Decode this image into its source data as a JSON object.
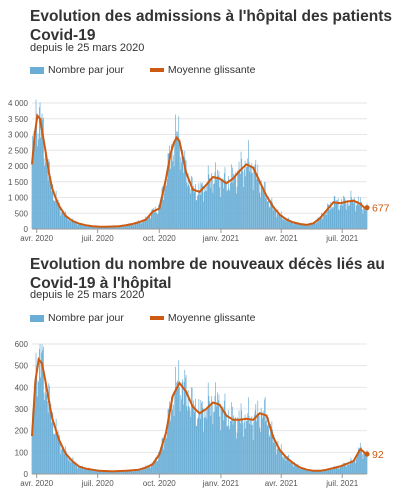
{
  "charts_meta": {
    "bar_color": "#6aaed6",
    "line_color": "#cc5a10"
  },
  "chart_data": [
    {
      "type": "bar+line",
      "title": "Evolution des admissions à l'hôpital des patients Covid-19",
      "subtitle": "depuis le 25 mars 2020",
      "legend": [
        "Nombre par jour",
        "Moyenne glissante"
      ],
      "ylim": [
        0,
        4000
      ],
      "yticks": [
        "4 000",
        "3 500",
        "3 000",
        "2 500",
        "2 000",
        "1 500",
        "1 000",
        "500",
        "0"
      ],
      "xticks": [
        "avr. 2020",
        "juil. 2020",
        "oct. 2020",
        "janv. 2021",
        "avr. 2021",
        "juil. 2021"
      ],
      "end_label": "677",
      "series": [
        {
          "name": "Moyenne glissante",
          "x": [
            0,
            4,
            8,
            12,
            16,
            20,
            25,
            30,
            35,
            40,
            50,
            60,
            70,
            80,
            90,
            100,
            110,
            120,
            130,
            140,
            150,
            160,
            170,
            180,
            190,
            200,
            207,
            212,
            216,
            220,
            230,
            240,
            250,
            260,
            270,
            280,
            290,
            300,
            310,
            320,
            330,
            340,
            350,
            360,
            370,
            380,
            390,
            400,
            410,
            420,
            430,
            440,
            450,
            460,
            470,
            480,
            490,
            496,
            500
          ],
          "y": [
            2050,
            3000,
            3600,
            3500,
            3000,
            2500,
            1800,
            1300,
            1000,
            750,
            420,
            260,
            170,
            120,
            90,
            75,
            70,
            80,
            90,
            120,
            160,
            220,
            300,
            550,
            650,
            1600,
            2400,
            2750,
            2900,
            2800,
            1800,
            1250,
            1180,
            1400,
            1650,
            1600,
            1450,
            1600,
            1850,
            2050,
            1950,
            1500,
            1050,
            700,
            450,
            300,
            210,
            160,
            130,
            180,
            350,
            600,
            850,
            820,
            870,
            900,
            800,
            680,
            677
          ]
        },
        {
          "name": "Nombre par jour",
          "note": "daily bars fluctuate around the moving average"
        }
      ]
    },
    {
      "type": "bar+line",
      "title": "Evolution du nombre de nouveaux décès liés au Covid-19 à l'hôpital",
      "subtitle": "depuis le 25 mars 2020",
      "legend": [
        "Nombre par jour",
        "Moyenne glissante"
      ],
      "ylim": [
        0,
        600
      ],
      "yticks": [
        "600",
        "500",
        "400",
        "300",
        "200",
        "100",
        "0"
      ],
      "xticks": [
        "avr. 2020",
        "juil. 2020",
        "oct. 2020",
        "janv. 2021",
        "avr. 2021",
        "juil. 2021"
      ],
      "end_label": "92",
      "series": [
        {
          "name": "Moyenne glissante",
          "x": [
            0,
            5,
            10,
            15,
            20,
            25,
            30,
            40,
            50,
            60,
            70,
            80,
            90,
            100,
            120,
            140,
            160,
            170,
            180,
            190,
            200,
            210,
            220,
            230,
            240,
            250,
            260,
            270,
            280,
            290,
            300,
            310,
            320,
            330,
            340,
            350,
            360,
            370,
            380,
            390,
            400,
            410,
            420,
            430,
            440,
            460,
            480,
            490,
            496,
            500
          ],
          "y": [
            175,
            430,
            530,
            510,
            430,
            340,
            260,
            160,
            95,
            60,
            35,
            25,
            20,
            15,
            12,
            15,
            20,
            30,
            45,
            90,
            190,
            360,
            420,
            380,
            310,
            280,
            300,
            330,
            320,
            270,
            250,
            250,
            255,
            250,
            280,
            270,
            170,
            110,
            75,
            50,
            30,
            20,
            15,
            15,
            20,
            35,
            60,
            115,
            100,
            92
          ]
        },
        {
          "name": "Nombre par jour",
          "note": "daily bars fluctuate around the moving average"
        }
      ]
    }
  ]
}
